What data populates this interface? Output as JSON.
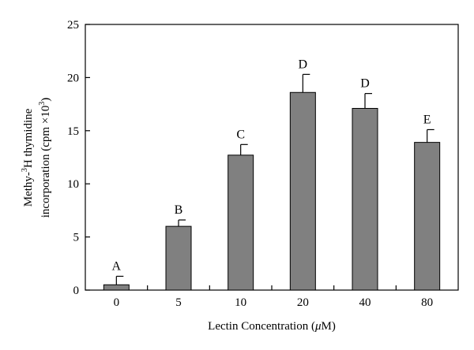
{
  "chart_data": {
    "type": "bar",
    "categories": [
      "0",
      "5",
      "10",
      "20",
      "40",
      "80"
    ],
    "values": [
      0.5,
      6.0,
      12.7,
      18.6,
      17.1,
      13.9
    ],
    "errors": [
      0.8,
      0.6,
      1.0,
      1.7,
      1.4,
      1.2
    ],
    "significance_labels": [
      "A",
      "B",
      "C",
      "D",
      "D",
      "E"
    ],
    "xlabel_prefix": "Lectin Concentration (",
    "xlabel_unit_prefix": "μ",
    "xlabel_suffix": "M)",
    "ylabel_line1_pre": "Methy-",
    "ylabel_line1_sup": "3",
    "ylabel_line1_post": "H thymidine",
    "ylabel_line2_pre": "incorporation (cpm ×10",
    "ylabel_line2_sup": "3",
    "ylabel_line2_post": ")",
    "ylim": [
      0,
      25
    ],
    "yticks": [
      0,
      5,
      10,
      15,
      20,
      25
    ],
    "bar_color": "#808080",
    "grid": false
  }
}
